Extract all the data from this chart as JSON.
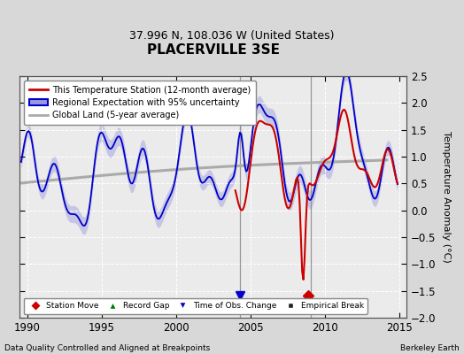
{
  "title": "PLACERVILLE 3SE",
  "subtitle": "37.996 N, 108.036 W (United States)",
  "ylabel": "Temperature Anomaly (°C)",
  "xlabel_left": "Data Quality Controlled and Aligned at Breakpoints",
  "xlabel_right": "Berkeley Earth",
  "xlim": [
    1989.5,
    2015.5
  ],
  "ylim": [
    -2.0,
    2.5
  ],
  "yticks": [
    -2.0,
    -1.5,
    -1.0,
    -0.5,
    0.0,
    0.5,
    1.0,
    1.5,
    2.0,
    2.5
  ],
  "xticks": [
    1990,
    1995,
    2000,
    2005,
    2010,
    2015
  ],
  "bg_color": "#d8d8d8",
  "plot_bg_color": "#ebebeb",
  "grid_color": "#ffffff",
  "vertical_line_color": "#888888",
  "vertical_lines": [
    2004.3,
    2009.1
  ],
  "obs_change_x": 2004.3,
  "obs_change_y": -1.58,
  "station_move_x": 2008.9,
  "station_move_y": -1.58,
  "blue_line_color": "#0000cc",
  "blue_fill_color": "#9999dd",
  "red_line_color": "#cc0000",
  "gray_line_color": "#aaaaaa",
  "green_marker_color": "#007700",
  "black_marker_color": "#222222"
}
